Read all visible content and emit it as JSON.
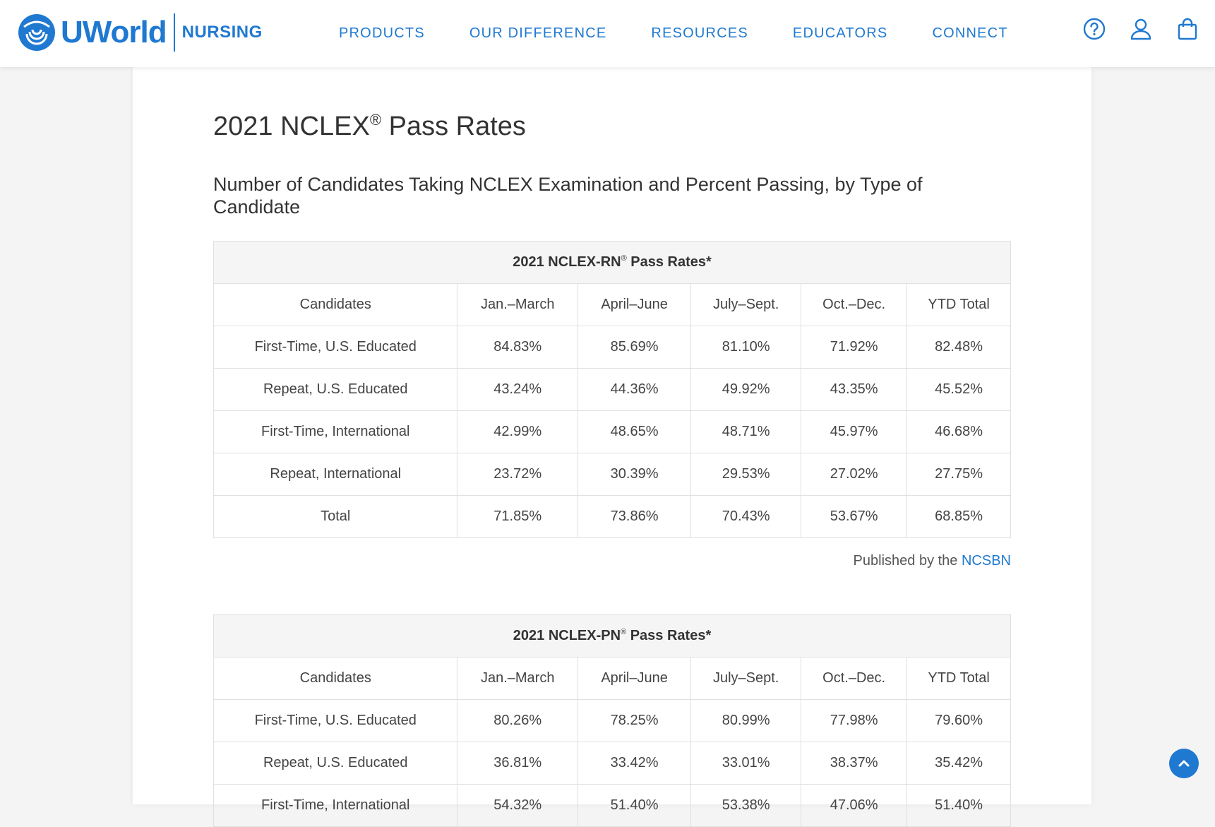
{
  "header": {
    "brand": "UWorld",
    "brand_sub": "NURSING",
    "nav": [
      "PRODUCTS",
      "OUR DIFFERENCE",
      "RESOURCES",
      "EDUCATORS",
      "CONNECT"
    ],
    "icons": [
      "help-icon",
      "user-icon",
      "cart-icon"
    ],
    "accent_color": "#1f79d1"
  },
  "page": {
    "title": "2021 NCLEX",
    "title_mark": "®",
    "title_rest": " Pass Rates",
    "subtitle": "Number of Candidates Taking NCLEX Examination and Percent Passing, by Type of Candidate"
  },
  "rn_table": {
    "caption": "2021 NCLEX-RN",
    "caption_mark": "®",
    "caption_rest": " Pass Rates*",
    "headers": [
      "Candidates",
      "Jan.–March",
      "April–June",
      "July–Sept.",
      "Oct.–Dec.",
      "YTD Total"
    ],
    "rows": [
      [
        "First-Time, U.S. Educated",
        "84.83%",
        "85.69%",
        "81.10%",
        "71.92%",
        "82.48%"
      ],
      [
        "Repeat, U.S. Educated",
        "43.24%",
        "44.36%",
        "49.92%",
        "43.35%",
        "45.52%"
      ],
      [
        "First-Time, International",
        "42.99%",
        "48.65%",
        "48.71%",
        "45.97%",
        "46.68%"
      ],
      [
        "Repeat, International",
        "23.72%",
        "30.39%",
        "29.53%",
        "27.02%",
        "27.75%"
      ],
      [
        "Total",
        "71.85%",
        "73.86%",
        "70.43%",
        "53.67%",
        "68.85%"
      ]
    ]
  },
  "published": {
    "text": "Published by the ",
    "link": "NCSBN"
  },
  "pn_table": {
    "caption": "2021 NCLEX-PN",
    "caption_mark": "®",
    "caption_rest": " Pass Rates*",
    "headers": [
      "Candidates",
      "Jan.–March",
      "April–June",
      "July–Sept.",
      "Oct.–Dec.",
      "YTD Total"
    ],
    "rows": [
      [
        "First-Time, U.S. Educated",
        "80.26%",
        "78.25%",
        "80.99%",
        "77.98%",
        "79.60%"
      ],
      [
        "Repeat, U.S. Educated",
        "36.81%",
        "33.42%",
        "33.01%",
        "38.37%",
        "35.42%"
      ],
      [
        "First-Time, International",
        "54.32%",
        "51.40%",
        "53.38%",
        "47.06%",
        "51.40%"
      ]
    ]
  }
}
